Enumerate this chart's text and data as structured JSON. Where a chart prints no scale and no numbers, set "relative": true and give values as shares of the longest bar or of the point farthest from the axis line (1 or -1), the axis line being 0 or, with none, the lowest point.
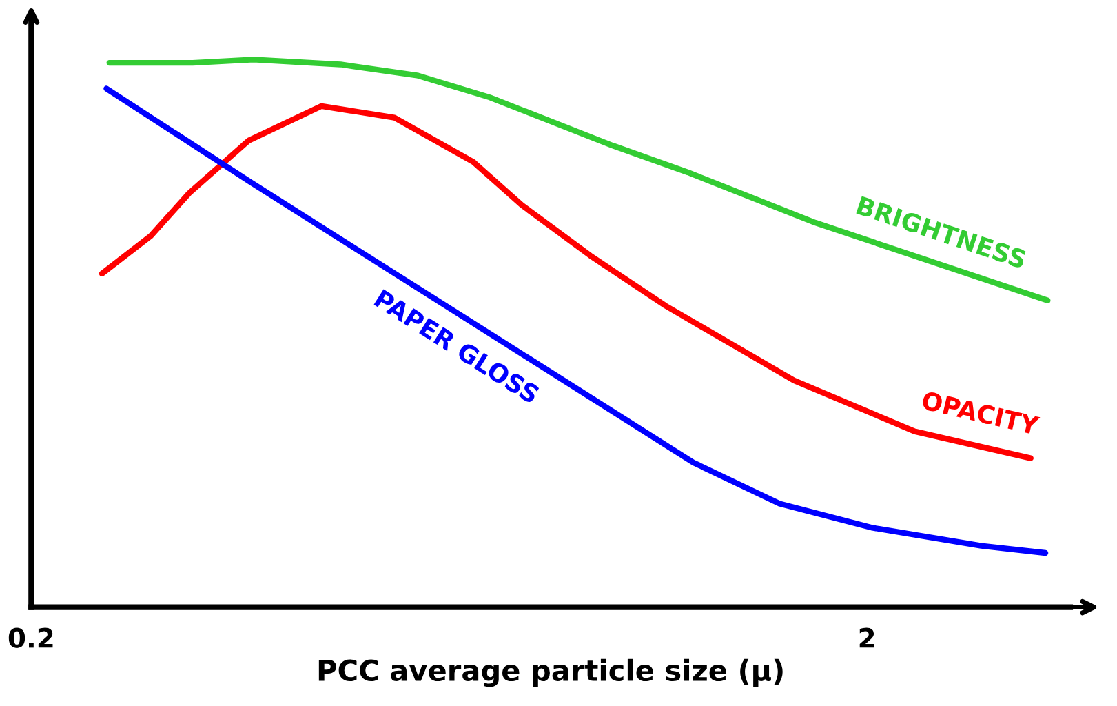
{
  "chart_data": {
    "type": "line",
    "xlabel": "PCC average particle size (μ)",
    "log": "x",
    "relative": true,
    "xlim": [
      0.2,
      3.5
    ],
    "xticks": [
      0.2,
      2
    ],
    "grid": false,
    "marker": "none",
    "line_style": "solid",
    "series": [
      {
        "name": "BRIGHTNESS",
        "color": "#33cc33",
        "x": [
          0.248,
          0.312,
          0.369,
          0.469,
          0.579,
          0.707,
          0.992,
          1.221,
          1.735,
          3.29
        ],
        "values": [
          0.994,
          0.994,
          1.0,
          0.991,
          0.971,
          0.931,
          0.843,
          0.794,
          0.702,
          0.56
        ]
      },
      {
        "name": "OPACITY",
        "color": "#ff0000",
        "x": [
          0.243,
          0.278,
          0.309,
          0.364,
          0.445,
          0.544,
          0.676,
          0.773,
          0.933,
          1.149,
          1.636,
          2.28,
          3.14
        ],
        "values": [
          0.609,
          0.678,
          0.756,
          0.852,
          0.915,
          0.894,
          0.813,
          0.734,
          0.642,
          0.55,
          0.414,
          0.321,
          0.272
        ]
      },
      {
        "name": "PAPER GLOSS",
        "color": "#0000ff",
        "x": [
          0.246,
          0.366,
          1.24,
          1.572,
          2.03,
          2.74,
          3.27
        ],
        "values": [
          0.947,
          0.776,
          0.264,
          0.189,
          0.145,
          0.112,
          0.099
        ]
      }
    ]
  }
}
